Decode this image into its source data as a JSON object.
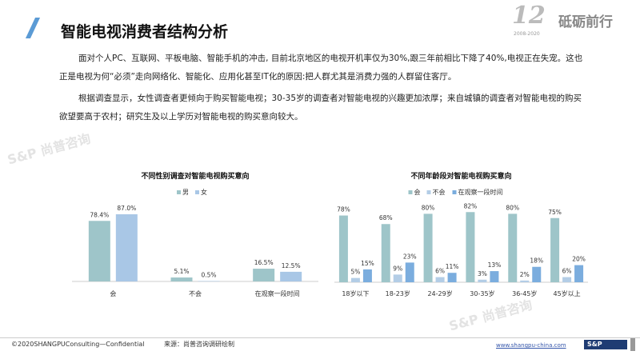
{
  "header": {
    "title": "智能电视消费者结构分析",
    "brand_number": "12",
    "brand_years": "2008-2020",
    "brand_slogan": "砥砺前行"
  },
  "body": {
    "paragraph1": "面对个人PC、互联网、平板电脑、智能手机的冲击, 目前北京地区的电视开机率仅为30%,跟三年前相比下降了40%,电视正在失宠。这也正是电视为何“必须”走向网络化、智能化、应用化甚至IT化的原因:把人群尤其是消费力强的人群留住客厅。",
    "paragraph2": "根据调查显示，女性调查者更倾向于购买智能电视；30-35岁的调查者对智能电视的兴趣更加浓厚；来自城镇的调查者对智能电视的购买欲望要高于农村；研究生及以上学历对智能电视的购买意向较大。"
  },
  "watermark": "S&P 尚普咨询",
  "chart_data": [
    {
      "type": "bar",
      "title": "不同性别调查对智能电视购买意向",
      "categories": [
        "会",
        "不会",
        "在观察一段时间"
      ],
      "series": [
        {
          "name": "男",
          "values": [
            78.4,
            5.1,
            16.5
          ],
          "labels": [
            "78.4%",
            "5.1%",
            "16.5%"
          ],
          "color": "#9ec5c9"
        },
        {
          "name": "女",
          "values": [
            87.0,
            0.5,
            12.5
          ],
          "labels": [
            "87.0%",
            "0.5%",
            "12.5%"
          ],
          "color": "#a9c7e6"
        }
      ],
      "ylim": [
        0,
        100
      ],
      "grid": false,
      "legend": "top"
    },
    {
      "type": "bar",
      "title": "不同年龄段对智能电视购买意向",
      "categories": [
        "18岁以下",
        "18-23岁",
        "24-29岁",
        "30-35岁",
        "36-45岁",
        "45岁以上"
      ],
      "series": [
        {
          "name": "会",
          "values": [
            78,
            68,
            80,
            82,
            80,
            75
          ],
          "labels": [
            "78%",
            "68%",
            "80%",
            "82%",
            "80%",
            "75%"
          ],
          "color": "#9ec5c9"
        },
        {
          "name": "不会",
          "values": [
            5,
            9,
            6,
            3,
            2,
            6
          ],
          "labels": [
            "5%",
            "9%",
            "6%",
            "3%",
            "2%",
            "6%"
          ],
          "color": "#b3cde6"
        },
        {
          "name": "在观察一段时间",
          "values": [
            15,
            23,
            11,
            13,
            18,
            20
          ],
          "labels": [
            "15%",
            "23%",
            "11%",
            "13%",
            "18%",
            "20%"
          ],
          "color": "#7badde"
        }
      ],
      "ylim": [
        0,
        100
      ],
      "grid": false,
      "legend": "top"
    }
  ],
  "footer": {
    "copyright": "©2020SHANGPUConsulting—Confidential",
    "source": "来源：尚普咨询调研绘制",
    "url": "www.shangpu-china.com",
    "logo": "S&P Consulting"
  }
}
